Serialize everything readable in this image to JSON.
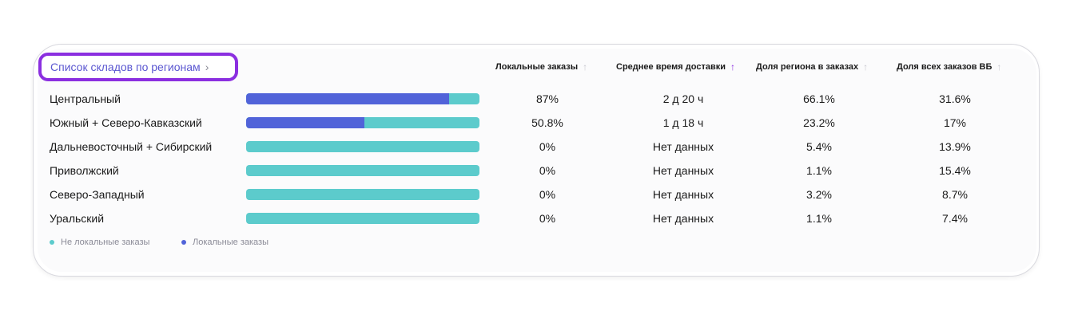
{
  "widget": {
    "link_label": "Список складов по регионам",
    "chevron": "chevron-right-icon"
  },
  "columns": [
    {
      "label": "Локальные заказы",
      "sort_icon": "arrow-up-icon",
      "sort_active": false
    },
    {
      "label": "Среднее время доставки",
      "sort_icon": "arrow-up-icon",
      "sort_active": true
    },
    {
      "label": "Доля региона в заказах",
      "sort_icon": "arrow-up-icon",
      "sort_active": false
    },
    {
      "label": "Доля всех заказов ВБ",
      "sort_icon": "arrow-up-icon",
      "sort_active": false
    }
  ],
  "rows": [
    {
      "region": "Центральный",
      "local_share": 0.87,
      "local_orders": "87%",
      "delivery_time": "2 д 20 ч",
      "region_share": "66.1%",
      "wb_share": "31.6%"
    },
    {
      "region": "Южный + Северо-Кавказский",
      "local_share": 0.508,
      "local_orders": "50.8%",
      "delivery_time": "1 д 18 ч",
      "region_share": "23.2%",
      "wb_share": "17%"
    },
    {
      "region": "Дальневосточный + Сибирский",
      "local_share": 0,
      "local_orders": "0%",
      "delivery_time": "Нет данных",
      "region_share": "5.4%",
      "wb_share": "13.9%"
    },
    {
      "region": "Приволжский",
      "local_share": 0,
      "local_orders": "0%",
      "delivery_time": "Нет данных",
      "region_share": "1.1%",
      "wb_share": "15.4%"
    },
    {
      "region": "Северо-Западный",
      "local_share": 0,
      "local_orders": "0%",
      "delivery_time": "Нет данных",
      "region_share": "3.2%",
      "wb_share": "8.7%"
    },
    {
      "region": "Уральский",
      "local_share": 0,
      "local_orders": "0%",
      "delivery_time": "Нет данных",
      "region_share": "1.1%",
      "wb_share": "7.4%"
    }
  ],
  "legend": [
    {
      "label": "Не локальные заказы",
      "color": "#5ccbcc"
    },
    {
      "label": "Локальные заказы",
      "color": "#5163d9"
    }
  ],
  "colors": {
    "accent_purple": "#8b2fe0",
    "link_blue": "#5b57d1",
    "bar_local": "#5163d9",
    "bar_nonlocal": "#5ccbcc"
  }
}
